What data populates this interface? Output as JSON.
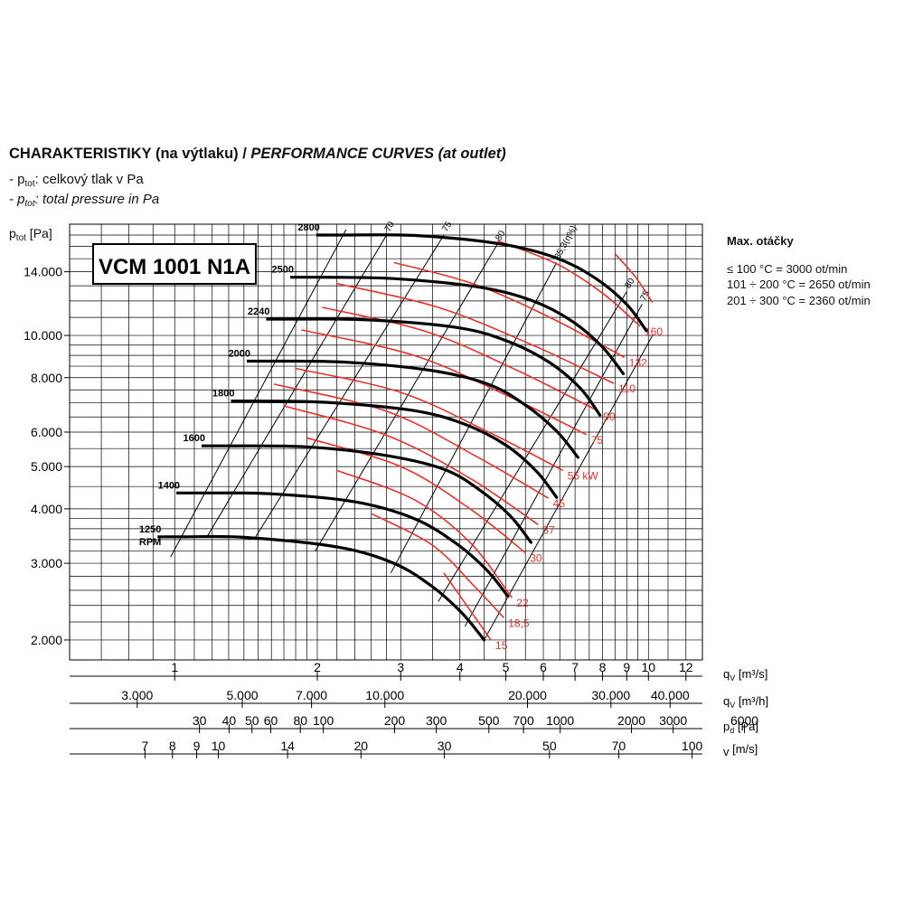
{
  "header": {
    "title_main": "CHARAKTERISTIKY (na výtlaku) / ",
    "title_italic": "PERFORMANCE CURVES (at outlet)",
    "legend_line1_prefix": "- p",
    "legend_line1_sub": "tot",
    "legend_line1_text": ": celkový tlak v Pa",
    "legend_line2_prefix": "- p",
    "legend_line2_sub": "tot",
    "legend_line2_text": ": total pressure in Pa"
  },
  "side_note": {
    "title": "Max. otáčky",
    "lines": [
      "≤ 100 °C = 3000 ot/min",
      "101 ÷ 200 °C = 2650 ot/min",
      "201 ÷ 300 °C = 2360 ot/min"
    ]
  },
  "chart_data": {
    "type": "line",
    "model_label": "VCM 1001 N1A",
    "y_axis": {
      "label_prefix": "p",
      "label_sub": "tot",
      "label_unit": " [Pa]",
      "scale": "log",
      "range": [
        1800,
        18000
      ],
      "ticks": [
        {
          "value": 2000,
          "label": "2.000"
        },
        {
          "value": 3000,
          "label": "3.000"
        },
        {
          "value": 4000,
          "label": "4.000"
        },
        {
          "value": 5000,
          "label": "5.000"
        },
        {
          "value": 6000,
          "label": "6.000"
        },
        {
          "value": 8000,
          "label": "8.000"
        },
        {
          "value": 10000,
          "label": "10.000"
        },
        {
          "value": 14000,
          "label": "14.000"
        }
      ]
    },
    "x_axis": {
      "scale": "log",
      "range": [
        0.6,
        13
      ],
      "axes": [
        {
          "label": "q",
          "sub": "V",
          "unit": " [m³/s]",
          "ticks": [
            {
              "value": 1,
              "label": "1"
            },
            {
              "value": 2,
              "label": "2"
            },
            {
              "value": 3,
              "label": "3"
            },
            {
              "value": 4,
              "label": "4"
            },
            {
              "value": 5,
              "label": "5"
            },
            {
              "value": 6,
              "label": "6"
            },
            {
              "value": 7,
              "label": "7"
            },
            {
              "value": 8,
              "label": "8"
            },
            {
              "value": 9,
              "label": "9"
            },
            {
              "value": 10,
              "label": "10"
            },
            {
              "value": 12,
              "label": "12"
            }
          ]
        },
        {
          "label": "q",
          "sub": "V",
          "unit": " [m³/h]",
          "ticks": [
            {
              "value": 3000,
              "label": "3.000"
            },
            {
              "value": 5000,
              "label": "5.000"
            },
            {
              "value": 7000,
              "label": "7.000"
            },
            {
              "value": 10000,
              "label": "10.000"
            },
            {
              "value": 20000,
              "label": "20.000"
            },
            {
              "value": 30000,
              "label": "30.000"
            },
            {
              "value": 40000,
              "label": "40.000"
            }
          ]
        },
        {
          "label": "p",
          "sub": "d",
          "unit": " [Pa]",
          "ticks": [
            {
              "value": 30,
              "label": "30"
            },
            {
              "value": 40,
              "label": "40"
            },
            {
              "value": 50,
              "label": "50"
            },
            {
              "value": 60,
              "label": "60"
            },
            {
              "value": 80,
              "label": "80"
            },
            {
              "value": 100,
              "label": "100"
            },
            {
              "value": 200,
              "label": "200"
            },
            {
              "value": 300,
              "label": "300"
            },
            {
              "value": 500,
              "label": "500"
            },
            {
              "value": 700,
              "label": "700"
            },
            {
              "value": 1000,
              "label": "1000"
            },
            {
              "value": 2000,
              "label": "2000"
            },
            {
              "value": 3000,
              "label": "3000"
            },
            {
              "value": 6000,
              "label": "6000"
            }
          ]
        },
        {
          "label": "v",
          "sub": "",
          "unit": " [m/s]",
          "ticks": [
            {
              "value": 7,
              "label": "7"
            },
            {
              "value": 8,
              "label": "8"
            },
            {
              "value": 9,
              "label": "9"
            },
            {
              "value": 10,
              "label": "10"
            },
            {
              "value": 14,
              "label": "14"
            },
            {
              "value": 20,
              "label": "20"
            },
            {
              "value": 30,
              "label": "30"
            },
            {
              "value": 50,
              "label": "50"
            },
            {
              "value": 70,
              "label": "70"
            },
            {
              "value": 100,
              "label": "100"
            }
          ]
        }
      ]
    },
    "speed_curves": [
      {
        "rpm": "1250",
        "rpm_unit": "RPM",
        "points": [
          [
            1.05,
            3450
          ],
          [
            1.4,
            3440
          ],
          [
            2.2,
            3270
          ],
          [
            2.9,
            3000
          ],
          [
            3.5,
            2650
          ],
          [
            4.05,
            2300
          ],
          [
            4.5,
            2000
          ]
        ]
      },
      {
        "rpm": "1400",
        "points": [
          [
            1.15,
            4350
          ],
          [
            1.6,
            4330
          ],
          [
            2.4,
            4150
          ],
          [
            3.2,
            3800
          ],
          [
            3.9,
            3350
          ],
          [
            4.55,
            2900
          ],
          [
            5.05,
            2520
          ]
        ]
      },
      {
        "rpm": "1600",
        "points": [
          [
            1.3,
            5580
          ],
          [
            1.9,
            5550
          ],
          [
            2.8,
            5300
          ],
          [
            3.7,
            4930
          ],
          [
            4.4,
            4420
          ],
          [
            5.1,
            3860
          ],
          [
            5.65,
            3350
          ]
        ]
      },
      {
        "rpm": "1800",
        "points": [
          [
            1.5,
            7070
          ],
          [
            2.1,
            7020
          ],
          [
            3.2,
            6720
          ],
          [
            4.1,
            6250
          ],
          [
            5.0,
            5600
          ],
          [
            5.8,
            4880
          ],
          [
            6.4,
            4250
          ]
        ]
      },
      {
        "rpm": "2000",
        "points": [
          [
            1.62,
            8730
          ],
          [
            2.3,
            8680
          ],
          [
            3.5,
            8300
          ],
          [
            4.6,
            7720
          ],
          [
            5.5,
            6920
          ],
          [
            6.4,
            6030
          ],
          [
            7.1,
            5250
          ]
        ]
      },
      {
        "rpm": "2240",
        "points": [
          [
            1.78,
            10900
          ],
          [
            2.6,
            10850
          ],
          [
            4.0,
            10400
          ],
          [
            5.1,
            9650
          ],
          [
            6.2,
            8650
          ],
          [
            7.2,
            7540
          ],
          [
            7.9,
            6560
          ]
        ]
      },
      {
        "rpm": "2500",
        "points": [
          [
            2.0,
            13600
          ],
          [
            2.9,
            13500
          ],
          [
            4.4,
            12900
          ],
          [
            5.7,
            12000
          ],
          [
            6.9,
            10780
          ],
          [
            8.0,
            9400
          ],
          [
            8.85,
            8170
          ]
        ]
      },
      {
        "rpm": "2800",
        "points": [
          [
            2.27,
            17000
          ],
          [
            3.25,
            16950
          ],
          [
            4.9,
            16200
          ],
          [
            6.4,
            15050
          ],
          [
            7.75,
            13500
          ],
          [
            9.0,
            11780
          ],
          [
            9.9,
            10250
          ]
        ]
      }
    ],
    "power_curves": [
      {
        "label": "15",
        "points": [
          [
            3.7,
            2850
          ],
          [
            4.25,
            2300
          ],
          [
            4.65,
            2000
          ]
        ]
      },
      {
        "label": "18,5",
        "points": [
          [
            2.6,
            3900
          ],
          [
            3.5,
            3300
          ],
          [
            4.3,
            2650
          ],
          [
            4.95,
            2250
          ]
        ]
      },
      {
        "label": "22",
        "points": [
          [
            2.2,
            4900
          ],
          [
            3.2,
            4200
          ],
          [
            4.2,
            3350
          ],
          [
            5.15,
            2500
          ]
        ]
      },
      {
        "label": "30",
        "points": [
          [
            1.9,
            5820
          ],
          [
            3.0,
            5000
          ],
          [
            4.2,
            4000
          ],
          [
            5.5,
            3170
          ]
        ]
      },
      {
        "label": "37",
        "points": [
          [
            1.7,
            6890
          ],
          [
            2.8,
            5900
          ],
          [
            4.2,
            4700
          ],
          [
            5.85,
            3680
          ]
        ]
      },
      {
        "label": "45",
        "points": [
          [
            1.62,
            7730
          ],
          [
            2.8,
            6700
          ],
          [
            4.3,
            5300
          ],
          [
            6.15,
            4230
          ]
        ]
      },
      {
        "label": "55 kW",
        "points": [
          [
            1.8,
            8400
          ],
          [
            3.0,
            7400
          ],
          [
            4.6,
            6000
          ],
          [
            6.6,
            4900
          ]
        ]
      },
      {
        "label": "75",
        "points": [
          [
            1.85,
            10300
          ],
          [
            3.2,
            9000
          ],
          [
            5.0,
            7300
          ],
          [
            7.4,
            5920
          ]
        ]
      },
      {
        "label": "90",
        "points": [
          [
            2.05,
            11600
          ],
          [
            3.4,
            10200
          ],
          [
            5.3,
            8300
          ],
          [
            7.85,
            6700
          ]
        ]
      },
      {
        "label": "110",
        "points": [
          [
            2.2,
            13150
          ],
          [
            3.6,
            11600
          ],
          [
            5.7,
            9500
          ],
          [
            8.45,
            7760
          ]
        ]
      },
      {
        "label": "132",
        "points": [
          [
            2.9,
            14700
          ],
          [
            4.3,
            13100
          ],
          [
            6.3,
            10900
          ],
          [
            8.9,
            8900
          ]
        ]
      },
      {
        "label": "160",
        "points": [
          [
            4.8,
            16500
          ],
          [
            6.4,
            14600
          ],
          [
            8.0,
            12500
          ],
          [
            9.6,
            10500
          ]
        ]
      },
      {
        "label": "",
        "points": [
          [
            8.5,
            15400
          ],
          [
            9.4,
            13600
          ],
          [
            10.2,
            11900
          ]
        ]
      }
    ],
    "efficiency_lines": [
      {
        "label": "70",
        "points": [
          [
            1.17,
            3450
          ],
          [
            2.8,
            17000
          ]
        ]
      },
      {
        "label": "75",
        "points": [
          [
            1.47,
            3400
          ],
          [
            3.7,
            17000
          ]
        ]
      },
      {
        "label": "80",
        "points": [
          [
            1.98,
            3200
          ],
          [
            4.8,
            16200
          ]
        ]
      },
      {
        "label": "85,3(η%)",
        "points": [
          [
            2.86,
            2850
          ],
          [
            6.4,
            14700
          ]
        ]
      },
      {
        "label": "80",
        "points": [
          [
            3.6,
            2450
          ],
          [
            9.0,
            12600
          ]
        ]
      },
      {
        "label": "75",
        "points": [
          [
            4.1,
            2150
          ],
          [
            9.7,
            11800
          ]
        ]
      }
    ]
  }
}
